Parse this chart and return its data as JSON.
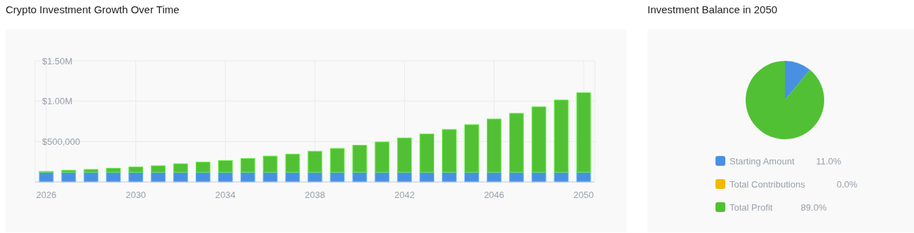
{
  "chart_data": [
    {
      "type": "bar",
      "title": "Crypto Investment Growth Over Time",
      "stacked": true,
      "x": [
        2026,
        2027,
        2028,
        2029,
        2030,
        2031,
        2032,
        2033,
        2034,
        2035,
        2036,
        2037,
        2038,
        2039,
        2040,
        2041,
        2042,
        2043,
        2044,
        2045,
        2046,
        2047,
        2048,
        2049,
        2050
      ],
      "series": [
        {
          "color": "#4a90e2",
          "values": [
            120000,
            120000,
            120000,
            120000,
            120000,
            120000,
            120000,
            120000,
            120000,
            120000,
            120000,
            120000,
            120000,
            120000,
            120000,
            120000,
            120000,
            120000,
            120000,
            120000,
            120000,
            120000,
            120000,
            120000,
            120000
          ]
        },
        {
          "color": "#52c035",
          "values": [
            10000,
            25000,
            35000,
            50000,
            65000,
            80000,
            105000,
            125000,
            145000,
            170000,
            200000,
            225000,
            260000,
            295000,
            335000,
            375000,
            425000,
            475000,
            530000,
            590000,
            660000,
            730000,
            810000,
            895000,
            985000
          ]
        }
      ],
      "xlim": [
        2025.5,
        2050.5
      ],
      "xticks": [
        2026,
        2030,
        2034,
        2038,
        2042,
        2046,
        2050
      ],
      "ylim": [
        0,
        1500000
      ],
      "yticks": [
        {
          "value": 500000,
          "label": "$500,000"
        },
        {
          "value": 1000000,
          "label": "$1.00M"
        },
        {
          "value": 1500000,
          "label": "$1.50M"
        }
      ],
      "grid": true
    },
    {
      "type": "pie",
      "title": "Investment Balance in 2050",
      "categories": [
        "Starting Amount",
        "Total Contributions",
        "Total Profit"
      ],
      "values": [
        11,
        0,
        89
      ],
      "colors": [
        "#4a90e2",
        "#f5b800",
        "#52c035"
      ],
      "value_labels": [
        "11.0%",
        "0.0%",
        "89.0%"
      ],
      "legend": "bottom"
    }
  ]
}
